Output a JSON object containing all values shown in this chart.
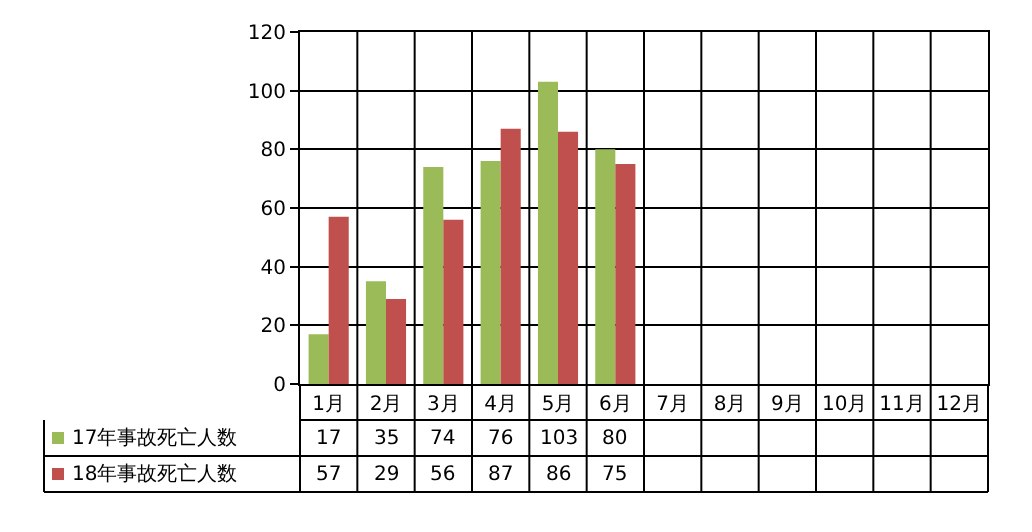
{
  "chart_data": {
    "type": "bar",
    "categories": [
      "1月",
      "2月",
      "3月",
      "4月",
      "5月",
      "6月",
      "7月",
      "8月",
      "9月",
      "10月",
      "11月",
      "12月"
    ],
    "series": [
      {
        "name": "17年事故死亡人数",
        "color": "#9bbb59",
        "values": [
          17,
          35,
          74,
          76,
          103,
          80,
          null,
          null,
          null,
          null,
          null,
          null
        ]
      },
      {
        "name": "18年事故死亡人数",
        "color": "#c0504d",
        "values": [
          57,
          29,
          56,
          87,
          86,
          75,
          null,
          null,
          null,
          null,
          null,
          null
        ]
      }
    ],
    "ylim": [
      0,
      120
    ],
    "yticks": [
      0,
      20,
      40,
      60,
      80,
      100,
      120
    ],
    "grid": true,
    "data_labels": true,
    "legend": "bottom"
  }
}
